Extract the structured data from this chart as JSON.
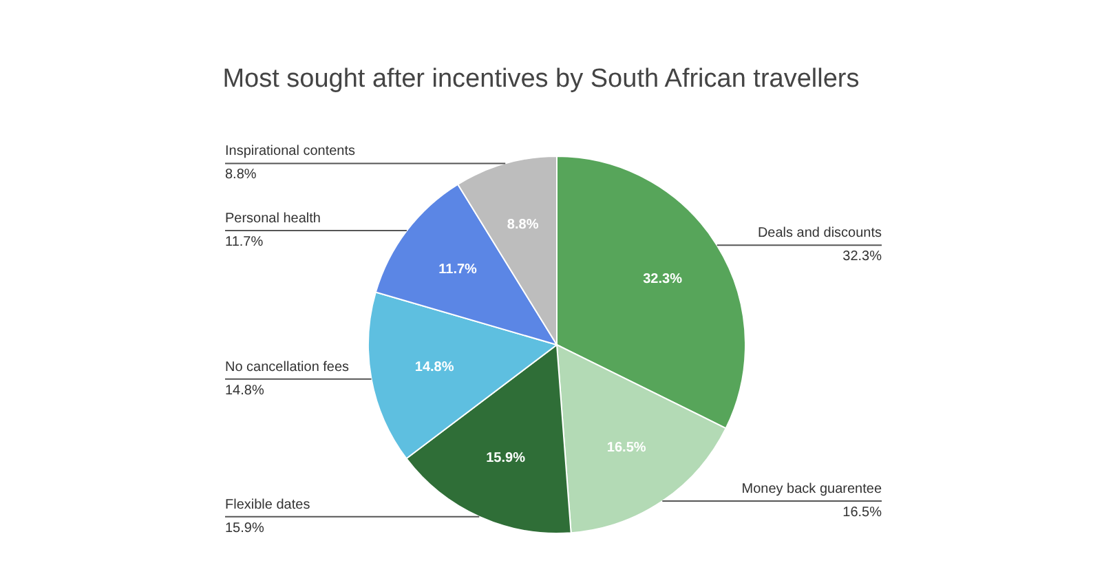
{
  "chart_data": {
    "type": "pie",
    "title": "Most sought after incentives by South African travellers",
    "categories": [
      "Deals and discounts",
      "Money back guarentee",
      "Flexible dates",
      "No cancellation fees",
      "Personal health",
      "Inspirational contents"
    ],
    "values": [
      32.3,
      16.5,
      15.9,
      14.8,
      11.7,
      8.8
    ],
    "colors": [
      "#57a55a",
      "#b3dab5",
      "#2f6e37",
      "#5ebfe0",
      "#5b86e5",
      "#bdbdbd"
    ],
    "value_labels": [
      "32.3%",
      "16.5%",
      "15.9%",
      "14.8%",
      "11.7%",
      "8.8%"
    ]
  }
}
